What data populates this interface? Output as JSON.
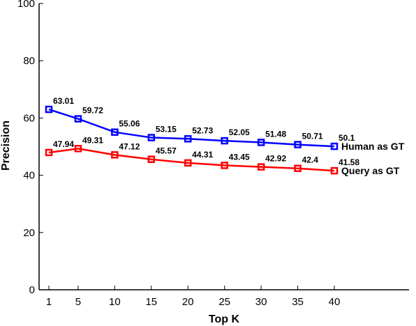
{
  "chart_data": {
    "type": "line",
    "title": "",
    "xlabel": "Top K",
    "ylabel": "Precision",
    "x": [
      1,
      5,
      10,
      15,
      20,
      25,
      30,
      35,
      40
    ],
    "x_tick_labels": [
      "1",
      "5",
      "10",
      "15",
      "20",
      "25",
      "30",
      "35",
      "40"
    ],
    "y_ticks": [
      "0",
      "20",
      "40",
      "60",
      "80",
      "100"
    ],
    "ylim": [
      0,
      100
    ],
    "grid": false,
    "legend": "series labels placed at the right end of each line",
    "series": [
      {
        "name": "Human as GT",
        "color": "#0000ff",
        "marker": "square",
        "values": [
          63.01,
          59.72,
          55.06,
          53.15,
          52.73,
          52.05,
          51.48,
          50.71,
          50.1
        ],
        "labels": [
          "63.01",
          "59.72",
          "55.06",
          "53.15",
          "52.73",
          "52.05",
          "51.48",
          "50.71",
          "50.1"
        ]
      },
      {
        "name": "Query as GT",
        "color": "#ff0000",
        "marker": "square",
        "values": [
          47.94,
          49.31,
          47.12,
          45.57,
          44.31,
          43.45,
          42.92,
          42.4,
          41.58
        ],
        "labels": [
          "47.94",
          "49.31",
          "47.12",
          "45.57",
          "44.31",
          "43.45",
          "42.92",
          "42.4",
          "41.58"
        ]
      }
    ]
  }
}
